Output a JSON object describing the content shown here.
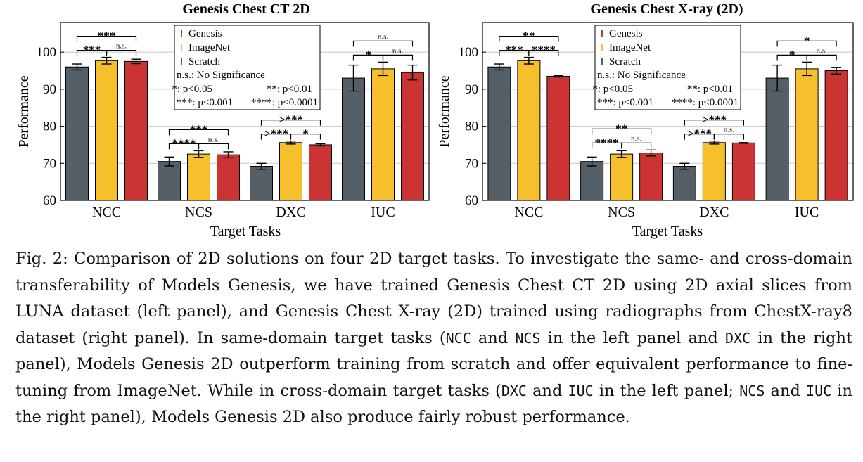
{
  "chart_data": [
    {
      "type": "bar",
      "title": "Genesis Chest CT 2D",
      "xlabel": "Target Tasks",
      "ylabel": "Performance",
      "ylim": [
        60,
        108
      ],
      "yticks": [
        "60",
        "70",
        "80",
        "90",
        "100"
      ],
      "grid": true,
      "legend_position": "top-center",
      "categories": [
        "NCC",
        "NCS",
        "DXC",
        "IUC"
      ],
      "series": [
        {
          "name": "Genesis",
          "color": "#cc3333",
          "values": [
            97.5,
            72.3,
            75.0,
            94.5
          ],
          "errors": [
            0.6,
            0.8,
            0.3,
            2.0
          ]
        },
        {
          "name": "ImageNet",
          "color": "#f5c02c",
          "values": [
            97.7,
            72.5,
            75.6,
            95.5
          ],
          "errors": [
            0.9,
            0.9,
            0.4,
            1.8
          ]
        },
        {
          "name": "Scratch",
          "color": "#555f68",
          "values": [
            96.0,
            70.5,
            69.2,
            93.0
          ],
          "errors": [
            0.8,
            1.2,
            0.8,
            3.5
          ]
        }
      ],
      "bar_order": [
        "Scratch",
        "ImageNet",
        "Genesis"
      ],
      "significance": [
        {
          "category": "NCC",
          "from": "Scratch",
          "to": "Genesis",
          "label": "***",
          "level": 1
        },
        {
          "category": "NCC",
          "from": "Scratch",
          "to": "ImageNet",
          "label": "***",
          "level": 0
        },
        {
          "category": "NCC",
          "from": "ImageNet",
          "to": "Genesis",
          "label": "n.s.",
          "level": 0
        },
        {
          "category": "NCS",
          "from": "Scratch",
          "to": "Genesis",
          "label": "***",
          "level": 1
        },
        {
          "category": "NCS",
          "from": "Scratch",
          "to": "ImageNet",
          "label": "****",
          "level": 0
        },
        {
          "category": "NCS",
          "from": "ImageNet",
          "to": "Genesis",
          "label": "n.s.",
          "level": 0
        },
        {
          "category": "DXC",
          "from": "Scratch",
          "to": "Genesis",
          "label": ">***",
          "level": 1
        },
        {
          "category": "DXC",
          "from": "Scratch",
          "to": "ImageNet",
          "label": ">***",
          "level": 0
        },
        {
          "category": "DXC",
          "from": "ImageNet",
          "to": "Genesis",
          "label": "*",
          "level": 0
        },
        {
          "category": "IUC",
          "from": "Scratch",
          "to": "Genesis",
          "label": "n.s.",
          "level": 1
        },
        {
          "category": "IUC",
          "from": "Scratch",
          "to": "ImageNet",
          "label": "*",
          "level": 0
        },
        {
          "category": "IUC",
          "from": "ImageNet",
          "to": "Genesis",
          "label": "n.s.",
          "level": 0
        }
      ],
      "legend_notes": [
        "n.s.: No Significance",
        "*: p<0.05",
        "**: p<0.01",
        "***: p<0.001",
        "****: p<0.0001"
      ]
    },
    {
      "type": "bar",
      "title": "Genesis Chest X-ray (2D)",
      "xlabel": "Target Tasks",
      "ylabel": "Performance",
      "ylim": [
        60,
        108
      ],
      "yticks": [
        "60",
        "70",
        "80",
        "90",
        "100"
      ],
      "grid": true,
      "legend_position": "top-center",
      "categories": [
        "NCC",
        "NCS",
        "DXC",
        "IUC"
      ],
      "series": [
        {
          "name": "Genesis",
          "color": "#cc3333",
          "values": [
            93.5,
            72.8,
            75.5,
            95.0
          ],
          "errors": [
            0.2,
            0.8,
            0.1,
            0.9
          ]
        },
        {
          "name": "ImageNet",
          "color": "#f5c02c",
          "values": [
            97.7,
            72.5,
            75.6,
            95.5
          ],
          "errors": [
            0.9,
            0.9,
            0.4,
            1.8
          ]
        },
        {
          "name": "Scratch",
          "color": "#555f68",
          "values": [
            96.0,
            70.5,
            69.2,
            93.0
          ],
          "errors": [
            0.8,
            1.2,
            0.8,
            3.5
          ]
        }
      ],
      "bar_order": [
        "Scratch",
        "ImageNet",
        "Genesis"
      ],
      "significance": [
        {
          "category": "NCC",
          "from": "Scratch",
          "to": "Genesis",
          "label": "**",
          "level": 1
        },
        {
          "category": "NCC",
          "from": "Scratch",
          "to": "ImageNet",
          "label": "***",
          "level": 0
        },
        {
          "category": "NCC",
          "from": "ImageNet",
          "to": "Genesis",
          "label": "****",
          "level": 0
        },
        {
          "category": "NCS",
          "from": "Scratch",
          "to": "Genesis",
          "label": "**",
          "level": 1
        },
        {
          "category": "NCS",
          "from": "Scratch",
          "to": "ImageNet",
          "label": "****",
          "level": 0
        },
        {
          "category": "NCS",
          "from": "ImageNet",
          "to": "Genesis",
          "label": "n.s.",
          "level": 0
        },
        {
          "category": "DXC",
          "from": "Scratch",
          "to": "Genesis",
          "label": ">***",
          "level": 1
        },
        {
          "category": "DXC",
          "from": "Scratch",
          "to": "ImageNet",
          "label": ">***",
          "level": 0
        },
        {
          "category": "DXC",
          "from": "ImageNet",
          "to": "Genesis",
          "label": "n.s.",
          "level": 0
        },
        {
          "category": "IUC",
          "from": "Scratch",
          "to": "Genesis",
          "label": "*",
          "level": 1
        },
        {
          "category": "IUC",
          "from": "Scratch",
          "to": "ImageNet",
          "label": "*",
          "level": 0
        },
        {
          "category": "IUC",
          "from": "ImageNet",
          "to": "Genesis",
          "label": "n.s.",
          "level": 0
        }
      ],
      "legend_notes": [
        "n.s.: No Significance",
        "*: p<0.05",
        "**: p<0.01",
        "***: p<0.001",
        "****: p<0.0001"
      ]
    }
  ],
  "caption": {
    "label": "Fig. 2:",
    "t1": " Comparison of 2D solutions on four 2D target tasks. To investigate the same- and cross-domain transferability of Models Genesis, we have trained Genesis Chest CT 2D using 2D axial slices from LUNA dataset (left panel), and Genesis Chest X-ray (2D) trained using radiographs from ChestX-ray8 dataset (right panel). In same-domain target tasks (",
    "c1": "NCC",
    "t2": " and ",
    "c2": "NCS",
    "t3": " in the left panel and ",
    "c3": "DXC",
    "t4": " in the right panel), Models Genesis 2D outperform training from scratch and offer equivalent performance to fine-tuning from ImageNet. While in cross-domain target tasks (",
    "c4": "DXC",
    "t5": " and ",
    "c5": "IUC",
    "t6": " in the left panel; ",
    "c6": "NCS",
    "t7": " and ",
    "c7": "IUC",
    "t8": " in the right panel), Models Genesis 2D also produce fairly robust performance."
  }
}
